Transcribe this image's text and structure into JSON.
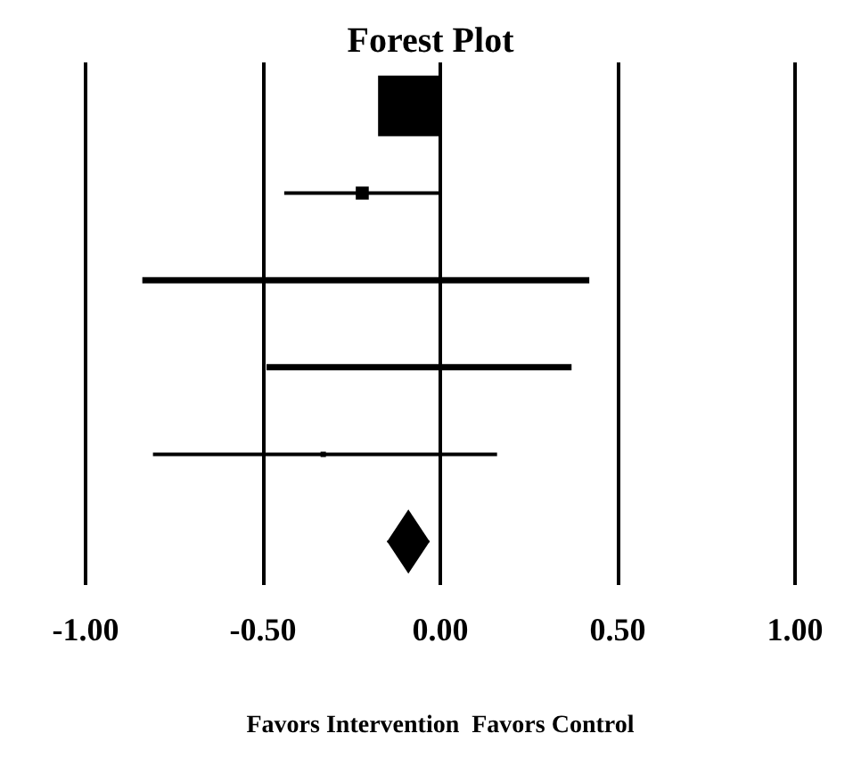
{
  "chart_data": {
    "type": "scatter",
    "orientation": "horizontal",
    "title": "Forest Plot",
    "xlabel": "Favors Intervention  Favors Control",
    "categories": [
      null,
      null,
      null,
      null,
      null,
      null
    ],
    "xlim": [
      -1,
      1
    ],
    "xticks": [
      {
        "value": -1,
        "label": "-1.00"
      },
      {
        "value": -0.5,
        "label": "-0.50"
      },
      {
        "value": 0,
        "label": "0.00"
      },
      {
        "value": 0.5,
        "label": "0.50"
      },
      {
        "value": 1,
        "label": "1.00"
      }
    ],
    "grid": "x",
    "tick_labels": "x",
    "series": [
      {
        "color": "#000000",
        "marker": "square",
        "values": [
          -0.09,
          -0.22,
          null,
          null,
          -0.33,
          null
        ],
        "errors": [
          null,
          [
            -0.44,
            0
          ],
          null,
          null,
          [
            -0.81,
            0.16
          ],
          null
        ],
        "sizes": [
          1,
          0.046,
          null,
          null,
          0.006,
          null
        ]
      },
      {
        "type": "bar",
        "color": "#000000",
        "base": [
          null,
          null,
          -0.84,
          -0.49,
          null,
          null
        ],
        "values": [
          null,
          null,
          1.26,
          0.86,
          null,
          null
        ]
      },
      {
        "color": "#000000",
        "marker": "diamond",
        "values": [
          null,
          null,
          null,
          null,
          null,
          -0.09
        ],
        "errors": [
          null,
          null,
          null,
          null,
          null,
          [
            -0.15,
            -0.03
          ]
        ]
      }
    ]
  }
}
